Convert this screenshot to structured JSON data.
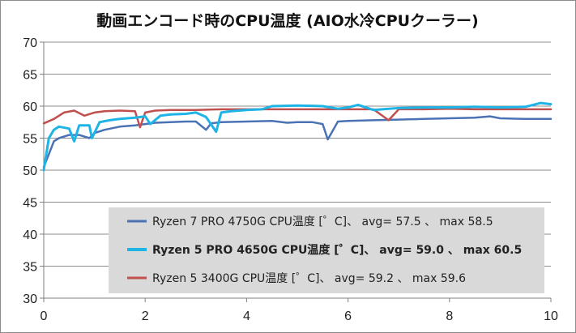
{
  "chart_data": {
    "type": "line",
    "title": "動画エンコード時のCPU温度 (AIO水冷CPUクーラー)",
    "xlabel": "",
    "ylabel": "",
    "xlim": [
      0,
      10
    ],
    "ylim": [
      30,
      70
    ],
    "x_ticks": [
      0,
      2,
      4,
      6,
      8,
      10
    ],
    "y_ticks": [
      30,
      35,
      40,
      45,
      50,
      55,
      60,
      65,
      70
    ],
    "grid": "horizontal",
    "legend_position": "bottom-right",
    "series": [
      {
        "name": "Ryzen 7 PRO 4750G CPU温度 [゜C]、 avg= 57.5 、 max 58.5",
        "color": "#4a72b5",
        "bold": false,
        "x": [
          0,
          0.1,
          0.2,
          0.3,
          0.5,
          0.7,
          0.9,
          1.0,
          1.2,
          1.5,
          1.8,
          2.0,
          2.2,
          2.5,
          2.8,
          3.0,
          3.2,
          3.3,
          3.5,
          4.0,
          4.5,
          4.8,
          5.0,
          5.3,
          5.5,
          5.6,
          5.8,
          6.0,
          6.5,
          7.0,
          7.5,
          8.0,
          8.5,
          8.8,
          9.0,
          9.5,
          10.0
        ],
        "y": [
          50.5,
          52.5,
          54.5,
          55.0,
          55.5,
          55.5,
          55.0,
          55.8,
          56.3,
          56.8,
          57.0,
          57.2,
          57.4,
          57.5,
          57.6,
          57.6,
          56.3,
          57.3,
          57.5,
          57.6,
          57.7,
          57.4,
          57.5,
          57.5,
          57.2,
          54.8,
          57.6,
          57.7,
          57.8,
          57.9,
          58.0,
          58.1,
          58.2,
          58.4,
          58.1,
          58.0,
          58.0
        ]
      },
      {
        "name": "Ryzen 5 PRO 4650G CPU温度 [゜C]、 avg= 59.0 、 max 60.5",
        "color": "#1eb4e6",
        "bold": true,
        "x": [
          0,
          0.1,
          0.2,
          0.3,
          0.5,
          0.6,
          0.7,
          0.9,
          0.95,
          1.1,
          1.3,
          1.5,
          1.8,
          2.0,
          2.1,
          2.3,
          2.5,
          2.8,
          3.0,
          3.2,
          3.4,
          3.5,
          3.7,
          4.0,
          4.3,
          4.5,
          5.0,
          5.5,
          5.8,
          6.0,
          6.2,
          6.5,
          6.8,
          7.0,
          7.5,
          8.0,
          8.5,
          9.0,
          9.5,
          9.8,
          10.0
        ],
        "y": [
          50.0,
          55.0,
          56.3,
          56.8,
          56.5,
          54.5,
          57.0,
          57.0,
          55.0,
          57.5,
          57.8,
          58.0,
          58.2,
          58.4,
          57.2,
          58.5,
          58.7,
          58.8,
          59.0,
          58.3,
          56.0,
          59.0,
          59.2,
          59.4,
          59.5,
          60.0,
          60.1,
          60.0,
          59.6,
          59.8,
          60.2,
          59.4,
          59.6,
          59.7,
          59.8,
          59.8,
          59.9,
          59.8,
          59.9,
          60.5,
          60.3
        ]
      },
      {
        "name": "Ryzen 5 3400G CPU温度 [゜C]、 avg= 59.2 、 max 59.6",
        "color": "#c0504d",
        "bold": false,
        "x": [
          0,
          0.2,
          0.4,
          0.6,
          0.8,
          1.0,
          1.2,
          1.5,
          1.8,
          1.9,
          2.0,
          2.2,
          2.5,
          3.0,
          3.5,
          4.0,
          4.5,
          5.0,
          5.5,
          6.0,
          6.5,
          6.8,
          7.0,
          7.5,
          8.0,
          8.5,
          9.0,
          9.5,
          10.0
        ],
        "y": [
          57.3,
          58.0,
          59.0,
          59.3,
          58.5,
          59.0,
          59.2,
          59.3,
          59.2,
          56.7,
          59.0,
          59.3,
          59.4,
          59.4,
          59.5,
          59.5,
          59.5,
          59.5,
          59.5,
          59.5,
          59.5,
          57.8,
          59.5,
          59.5,
          59.6,
          59.5,
          59.5,
          59.5,
          59.5
        ]
      }
    ]
  }
}
